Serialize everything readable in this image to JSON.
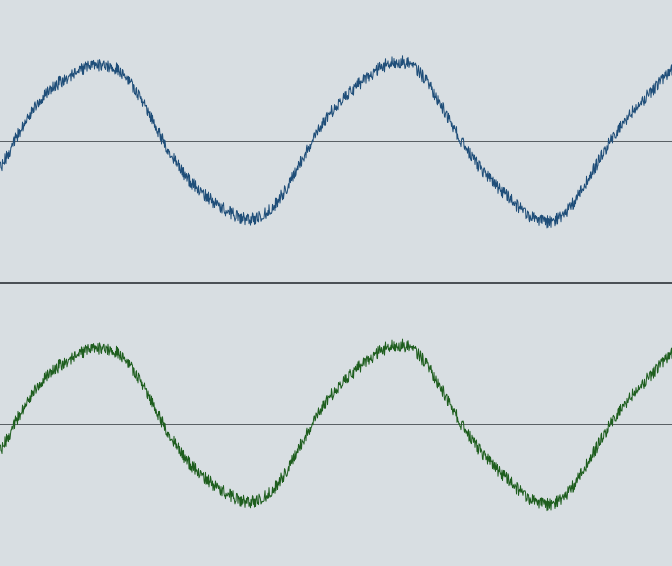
{
  "waveform_editor": {
    "tracks": [
      {
        "id": "track-1",
        "wave_color": "#1f4e79",
        "centerline_color": "#5a6065",
        "cycles_visible": 2.25,
        "amplitude_fraction": 0.55,
        "noise_fraction": 0.09
      },
      {
        "id": "track-2",
        "wave_color": "#1e5e1e",
        "centerline_color": "#5a6065",
        "cycles_visible": 2.25,
        "amplitude_fraction": 0.55,
        "noise_fraction": 0.09
      }
    ],
    "background_color": "#d8dee2",
    "divider_color": "#4a5055"
  }
}
